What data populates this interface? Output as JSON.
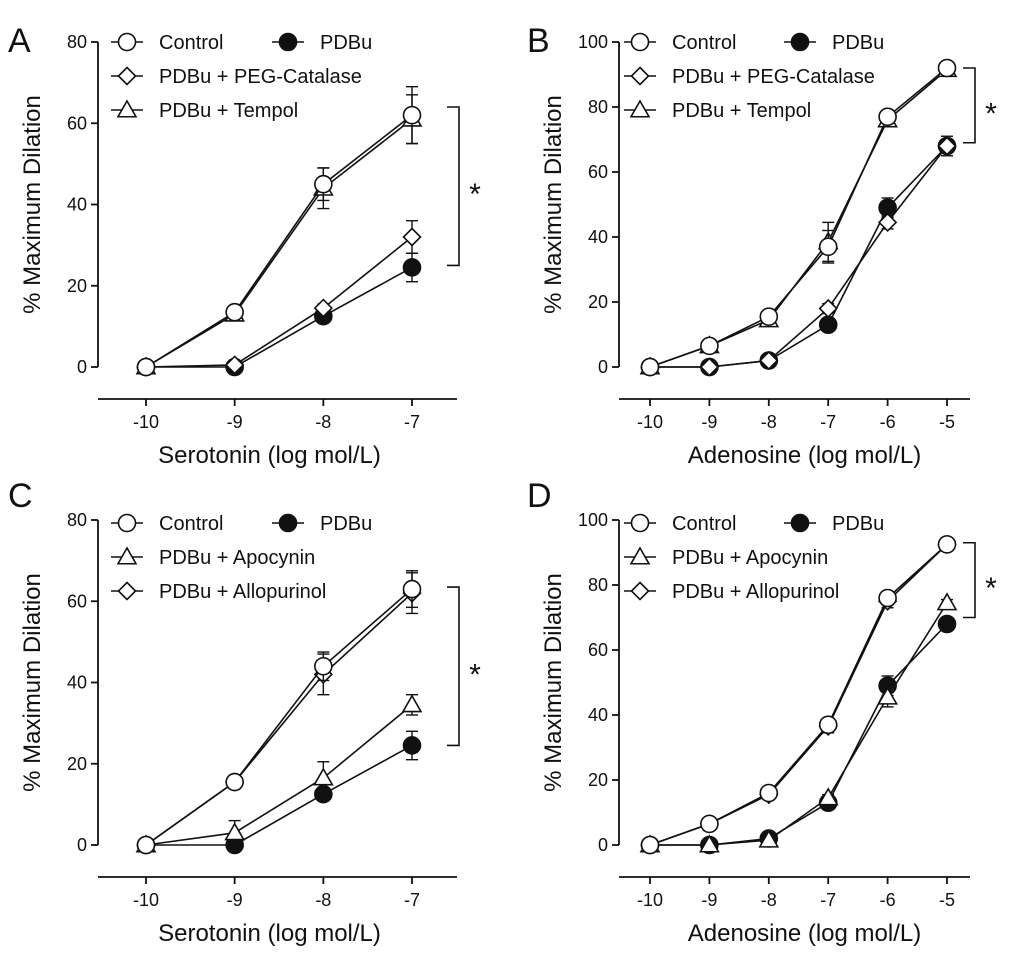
{
  "figure": {
    "panel_letters": [
      "A",
      "B",
      "C",
      "D"
    ]
  },
  "chart_data": [
    {
      "panel": "A",
      "type": "line",
      "xlabel": "Serotonin (log mol/L)",
      "ylabel": "% Maximum Dilation",
      "xlim": [
        -10,
        -7
      ],
      "ylim": [
        0,
        80
      ],
      "xticks": [
        -10,
        -9,
        -8,
        -7
      ],
      "yticks": [
        0,
        20,
        40,
        60,
        80
      ],
      "legend_placement": "top-left",
      "significance": {
        "label": "*",
        "from": 25,
        "to": 64
      },
      "x": [
        -10,
        -9,
        -8,
        -7
      ],
      "series": [
        {
          "name": "Control",
          "marker": "circle-open",
          "values": [
            0,
            13.5,
            45,
            62
          ],
          "errors": [
            0,
            1,
            4,
            7
          ]
        },
        {
          "name": "PDBu",
          "marker": "circle-filled",
          "values": [
            0,
            0,
            12.5,
            24.5
          ],
          "errors": [
            0,
            0,
            1,
            3.5
          ]
        },
        {
          "name": "PDBu + PEG-Catalase",
          "marker": "diamond-open",
          "values": [
            0,
            0.5,
            14.5,
            32
          ],
          "errors": [
            0,
            0,
            1,
            4
          ]
        },
        {
          "name": "PDBu + Tempol",
          "marker": "triangle-open",
          "values": [
            0,
            13,
            44,
            61
          ],
          "errors": [
            0,
            1,
            5,
            6
          ]
        }
      ]
    },
    {
      "panel": "B",
      "type": "line",
      "xlabel": "Adenosine (log mol/L)",
      "ylabel": "% Maximum Dilation",
      "xlim": [
        -10,
        -5
      ],
      "ylim": [
        0,
        100
      ],
      "xticks": [
        -10,
        -9,
        -8,
        -7,
        -6,
        -5
      ],
      "yticks": [
        0,
        20,
        40,
        60,
        80,
        100
      ],
      "legend_placement": "top-left",
      "significance": {
        "label": "*",
        "from": 69,
        "to": 92
      },
      "x": [
        -10,
        -9,
        -8,
        -7,
        -6,
        -5
      ],
      "series": [
        {
          "name": "Control",
          "marker": "circle-open",
          "values": [
            0,
            6.5,
            15.5,
            37,
            77,
            92
          ],
          "errors": [
            0,
            1,
            1.5,
            5,
            2,
            1
          ]
        },
        {
          "name": "PDBu",
          "marker": "circle-filled",
          "values": [
            0,
            0,
            2,
            13,
            49,
            68
          ],
          "errors": [
            0,
            0,
            1,
            1,
            3,
            3
          ]
        },
        {
          "name": "PDBu + PEG-Catalase",
          "marker": "diamond-open",
          "values": [
            0,
            0,
            2,
            18,
            44.5,
            68
          ],
          "errors": [
            0,
            0,
            1,
            1.5,
            2,
            2
          ]
        },
        {
          "name": "PDBu + Tempol",
          "marker": "triangle-open",
          "values": [
            0,
            6.5,
            14.5,
            38.5,
            76,
            91.5
          ],
          "errors": [
            0,
            1,
            1.5,
            6,
            2,
            1
          ]
        }
      ]
    },
    {
      "panel": "C",
      "type": "line",
      "xlabel": "Serotonin (log mol/L)",
      "ylabel": "% Maximum Dilation",
      "xlim": [
        -10,
        -7
      ],
      "ylim": [
        0,
        80
      ],
      "xticks": [
        -10,
        -9,
        -8,
        -7
      ],
      "yticks": [
        0,
        20,
        40,
        60,
        80
      ],
      "legend_placement": "top-left",
      "significance": {
        "label": "*",
        "from": 24.5,
        "to": 63.5
      },
      "x": [
        -10,
        -9,
        -8,
        -7
      ],
      "series": [
        {
          "name": "Control",
          "marker": "circle-open",
          "values": [
            0,
            15.5,
            44,
            63
          ],
          "errors": [
            0,
            1,
            3.5,
            4.5
          ]
        },
        {
          "name": "PDBu",
          "marker": "circle-filled",
          "values": [
            0,
            0,
            12.5,
            24.5
          ],
          "errors": [
            0,
            0,
            1,
            3.5
          ]
        },
        {
          "name": "PDBu + Apocynin",
          "marker": "triangle-open",
          "values": [
            0,
            3,
            16.5,
            34.5
          ],
          "errors": [
            0,
            3,
            4,
            2.5
          ]
        },
        {
          "name": "PDBu + Allopurinol",
          "marker": "diamond-open",
          "values": [
            0,
            15.5,
            42,
            62
          ],
          "errors": [
            0,
            1,
            5,
            5
          ]
        }
      ]
    },
    {
      "panel": "D",
      "type": "line",
      "xlabel": "Adenosine (log mol/L)",
      "ylabel": "% Maximum Dilation",
      "xlim": [
        -10,
        -5
      ],
      "ylim": [
        0,
        100
      ],
      "xticks": [
        -10,
        -9,
        -8,
        -7,
        -6,
        -5
      ],
      "yticks": [
        0,
        20,
        40,
        60,
        80,
        100
      ],
      "legend_placement": "top-left",
      "significance": {
        "label": "*",
        "from": 70,
        "to": 93
      },
      "x": [
        -10,
        -9,
        -8,
        -7,
        -6,
        -5
      ],
      "series": [
        {
          "name": "Control",
          "marker": "circle-open",
          "values": [
            0,
            6.5,
            16,
            37,
            76,
            92.5
          ],
          "errors": [
            0,
            1,
            1.5,
            2,
            2,
            1
          ]
        },
        {
          "name": "PDBu",
          "marker": "circle-filled",
          "values": [
            0,
            0,
            2,
            13,
            49,
            68
          ],
          "errors": [
            0,
            0,
            1,
            1,
            3,
            2
          ]
        },
        {
          "name": "PDBu + Apocynin",
          "marker": "triangle-open",
          "values": [
            0,
            0,
            1.5,
            14.5,
            45.5,
            74.5
          ],
          "errors": [
            0,
            0,
            1,
            1,
            3,
            1
          ]
        },
        {
          "name": "PDBu + Allopurinol",
          "marker": "diamond-open",
          "values": [
            0,
            6.5,
            15.5,
            36.5,
            75,
            92.5
          ],
          "errors": [
            0,
            1,
            1.5,
            2,
            2,
            1
          ]
        }
      ]
    }
  ]
}
